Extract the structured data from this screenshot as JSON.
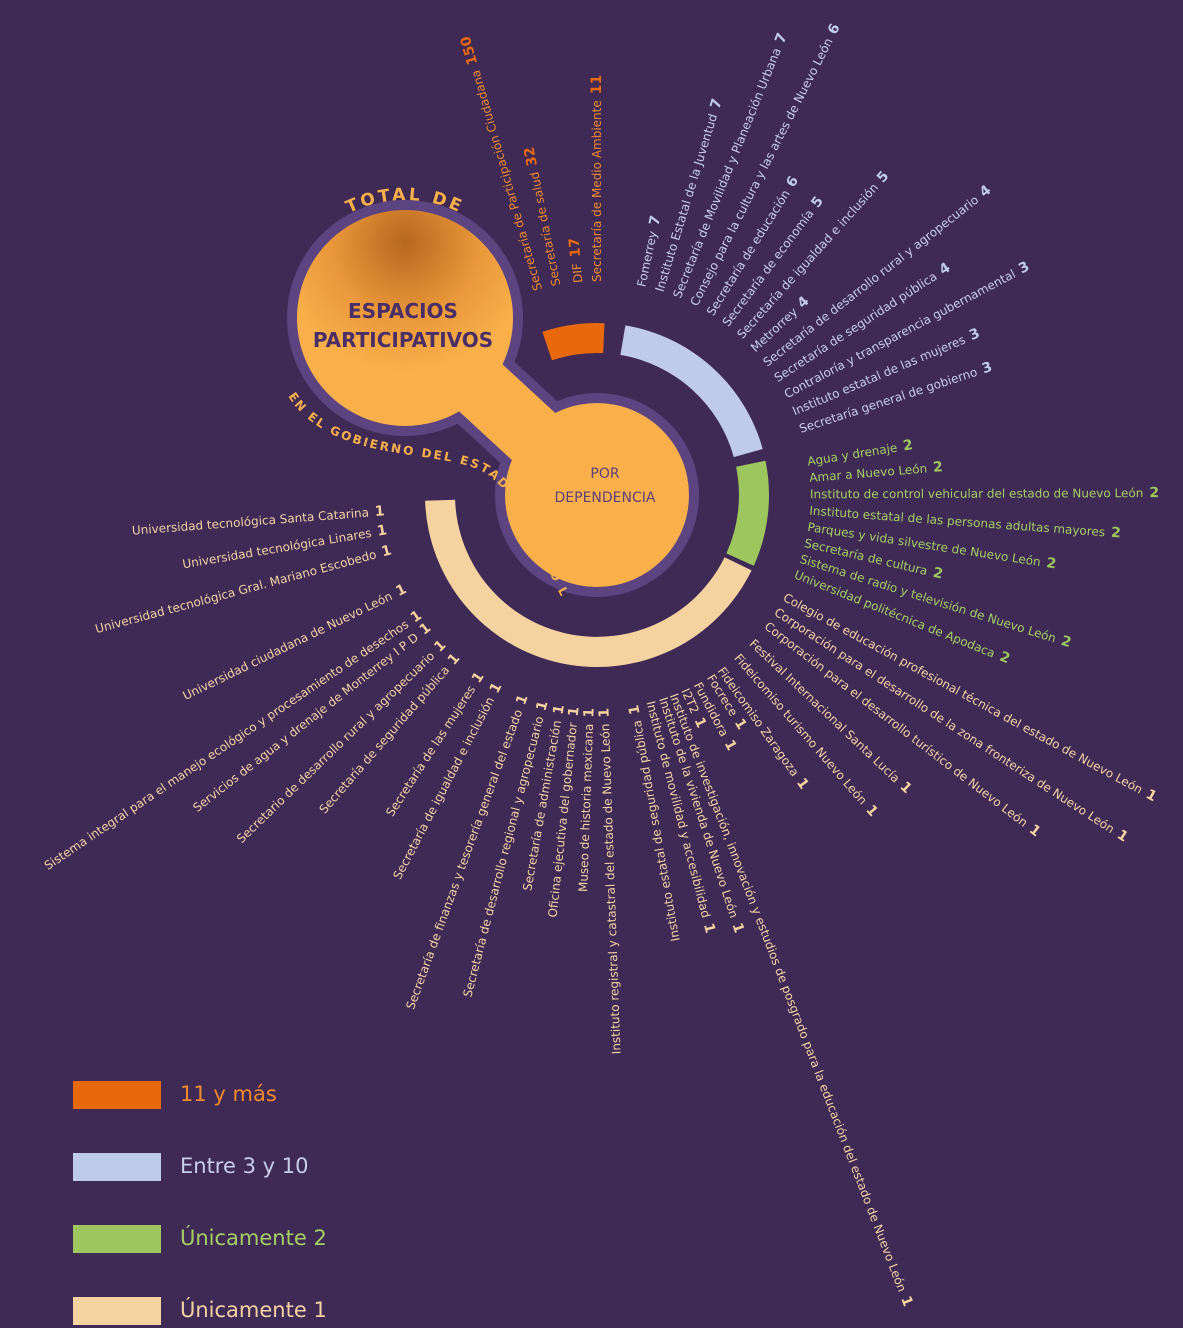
{
  "chart_data": {
    "type": "radial",
    "title_top": "TOTAL DE",
    "title_line1": "ESPACIOS",
    "title_line2": "PARTICIPATIVOS",
    "subtitle": "EN EL GOBIERNO DEL ESTADO DE NUEVO LEÓN",
    "center_line1": "POR",
    "center_line2": "DEPENDENCIA",
    "series": [
      {
        "name": "11 y más",
        "color": "#e8690c",
        "text_color": "#f08a2a",
        "categories": [
          "Secretaría de Participación Ciudadana",
          "Secretaría de salud",
          "DIF",
          "Secretaría de Medio Ambiente"
        ],
        "values": [
          150,
          32,
          17,
          11
        ]
      },
      {
        "name": "Entre 3 y 10",
        "color": "#c0cbea",
        "text_color": "#c8cdea",
        "categories": [
          "Fomerrey",
          "Instituto Estatal de la Juventud",
          "Secretaría de Movilidad y Planeación Urbana",
          "Consejo para la cultura y las artes de Nuevo León",
          "Secretaría de educación",
          "Secretaría de economía",
          "Secretaría de igualdad e inclusión",
          "Metrorrey",
          "Secretaría de desarrollo rural y agropecuario",
          "Secretaría de seguridad pública",
          "Contraloría y transparencia gubernamental",
          "Instituto estatal de las mujeres",
          "Secretaría general de gobierno"
        ],
        "values": [
          7,
          7,
          7,
          6,
          6,
          5,
          5,
          4,
          4,
          4,
          3,
          3,
          3
        ]
      },
      {
        "name": "Únicamente 2",
        "color": "#9dc75e",
        "text_color": "#a6cf63",
        "categories": [
          "Agua y drenaje",
          "Amar a Nuevo León",
          "Instituto de control vehicular del estado de Nuevo León",
          "Instituto estatal de las personas adultas mayores",
          "Parques y vida silvestre de Nuevo León",
          "Secretaría de cultura",
          "Sistema de radio y televisión de Nuevo León",
          "Universidad politécnica de Apodaca"
        ],
        "values": [
          2,
          2,
          2,
          2,
          2,
          2,
          2,
          2
        ]
      },
      {
        "name": "Únicamente 1",
        "color": "#f5d3a0",
        "text_color": "#f3d2a4",
        "categories": [
          "Colegio de educación profesional técnica del estado de Nuevo León",
          "Corporación para el desarrollo de la zona fronteriza de Nuevo León",
          "Corporación para el desarrollo turístico de Nuevo León",
          "Festival Internacional Santa Lucía",
          "Fideicomiso turismo Nuevo León",
          "Fideicomiso Zaragoza",
          "Focrece",
          "Fundidora",
          "I2T2",
          "Instituto de investigación, innovación y estudios de posgrado para la educación del estado de Nuevo León",
          "Instituto de la vivienda de Nuevo León",
          "Instituto de movilidad y accesibilidad",
          "Instituto estatal de seguridad pública",
          "Instituto registral y catastral del estado de Nuevo León",
          "Museo de historia mexicana",
          "Oficina ejecutiva del gobernador",
          "Secretaría de administración",
          "Secretaría de desarrollo regional y agropecuario",
          "Secretaría de finanzas y tesorería general del estado",
          "Secretaría de igualdad e inclusión",
          "Secretaría de las mujeres",
          "Secretaría de seguridad pública",
          "Secretario de desarrollo rural y agropecuario",
          "Servicios de agua y drenaje de Monterrey I P D",
          "Sistema integral para el manejo ecológico y procesamiento de desechos",
          "Universidad ciudadana de Nuevo León",
          "Universidad tecnológica Gral. Mariano Escobedo",
          "Universidad tecnológica Linares",
          "Universidad tecnológica Santa Catarina"
        ],
        "values": [
          1,
          1,
          1,
          1,
          1,
          1,
          1,
          1,
          1,
          1,
          1,
          1,
          1,
          1,
          1,
          1,
          1,
          1,
          1,
          1,
          1,
          1,
          1,
          1,
          1,
          1,
          1,
          1,
          1
        ]
      }
    ]
  }
}
